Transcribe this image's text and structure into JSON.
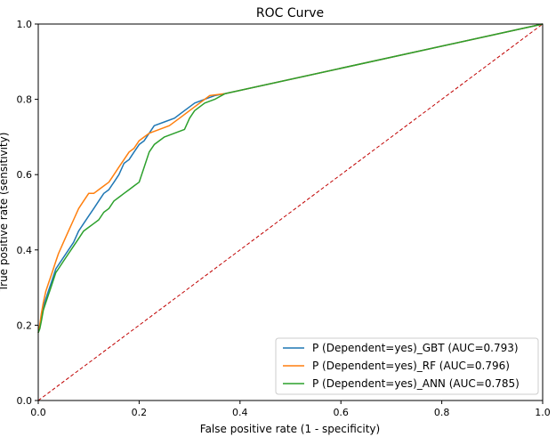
{
  "chart_data": {
    "type": "line",
    "title": "ROC Curve",
    "xlabel": "False positive rate (1 - specificity)",
    "ylabel": "True positive rate (sensitivity)",
    "xlim": [
      0.0,
      1.0
    ],
    "ylim": [
      0.0,
      1.0
    ],
    "xticks": [
      "0.0",
      "0.2",
      "0.4",
      "0.6",
      "0.8",
      "1.0"
    ],
    "yticks": [
      "0.0",
      "0.2",
      "0.4",
      "0.6",
      "0.8",
      "1.0"
    ],
    "grid": false,
    "legend_position": "lower-right",
    "reference_line": {
      "x": [
        0,
        1
      ],
      "y": [
        0,
        1
      ],
      "color": "#c00000",
      "style": "dashed"
    },
    "series": [
      {
        "name": "P (Dependent=yes)_GBT (AUC=0.793)",
        "color": "#1f77b4",
        "x": [
          0.0,
          0.003,
          0.006,
          0.01,
          0.015,
          0.02,
          0.025,
          0.03,
          0.035,
          0.04,
          0.05,
          0.06,
          0.07,
          0.08,
          0.09,
          0.1,
          0.11,
          0.12,
          0.13,
          0.14,
          0.15,
          0.16,
          0.17,
          0.18,
          0.19,
          0.2,
          0.21,
          0.22,
          0.23,
          0.25,
          0.27,
          0.29,
          0.31,
          0.33,
          0.35,
          0.37,
          1.0
        ],
        "y": [
          0.18,
          0.2,
          0.22,
          0.25,
          0.27,
          0.29,
          0.31,
          0.33,
          0.35,
          0.36,
          0.38,
          0.4,
          0.42,
          0.45,
          0.47,
          0.49,
          0.51,
          0.53,
          0.55,
          0.56,
          0.58,
          0.6,
          0.63,
          0.64,
          0.66,
          0.68,
          0.69,
          0.71,
          0.73,
          0.74,
          0.75,
          0.77,
          0.79,
          0.8,
          0.81,
          0.815,
          1.0
        ]
      },
      {
        "name": "P (Dependent=yes)_RF (AUC=0.796)",
        "color": "#ff7f0e",
        "x": [
          0.0,
          0.003,
          0.006,
          0.01,
          0.015,
          0.02,
          0.025,
          0.03,
          0.035,
          0.04,
          0.05,
          0.06,
          0.07,
          0.08,
          0.09,
          0.1,
          0.11,
          0.12,
          0.13,
          0.14,
          0.15,
          0.16,
          0.17,
          0.18,
          0.19,
          0.2,
          0.21,
          0.22,
          0.24,
          0.26,
          0.28,
          0.3,
          0.32,
          0.34,
          0.37,
          1.0
        ],
        "y": [
          0.18,
          0.2,
          0.23,
          0.26,
          0.29,
          0.31,
          0.33,
          0.35,
          0.37,
          0.39,
          0.42,
          0.45,
          0.48,
          0.51,
          0.53,
          0.55,
          0.55,
          0.56,
          0.57,
          0.58,
          0.6,
          0.62,
          0.64,
          0.66,
          0.67,
          0.69,
          0.7,
          0.71,
          0.72,
          0.73,
          0.75,
          0.77,
          0.79,
          0.81,
          0.815,
          1.0
        ]
      },
      {
        "name": "P (Dependent=yes)_ANN (AUC=0.785)",
        "color": "#2ca02c",
        "x": [
          0.0,
          0.003,
          0.006,
          0.01,
          0.015,
          0.02,
          0.025,
          0.03,
          0.035,
          0.04,
          0.05,
          0.06,
          0.07,
          0.08,
          0.09,
          0.1,
          0.11,
          0.12,
          0.13,
          0.14,
          0.15,
          0.16,
          0.17,
          0.18,
          0.19,
          0.2,
          0.21,
          0.22,
          0.23,
          0.25,
          0.27,
          0.29,
          0.3,
          0.31,
          0.33,
          0.35,
          0.37,
          1.0
        ],
        "y": [
          0.18,
          0.19,
          0.21,
          0.24,
          0.26,
          0.28,
          0.3,
          0.32,
          0.34,
          0.35,
          0.37,
          0.39,
          0.41,
          0.43,
          0.45,
          0.46,
          0.47,
          0.48,
          0.5,
          0.51,
          0.53,
          0.54,
          0.55,
          0.56,
          0.57,
          0.58,
          0.62,
          0.66,
          0.68,
          0.7,
          0.71,
          0.72,
          0.75,
          0.77,
          0.79,
          0.8,
          0.815,
          1.0
        ]
      }
    ]
  }
}
